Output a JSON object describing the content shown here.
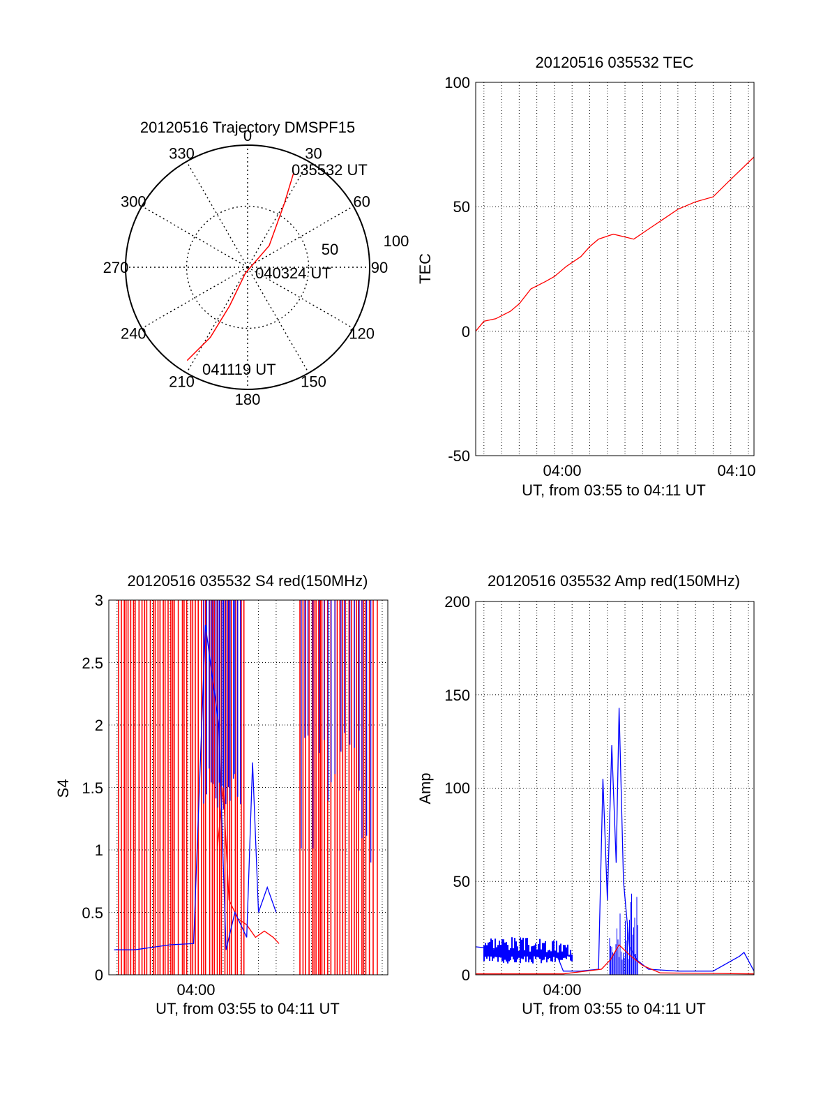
{
  "chart_data": [
    {
      "type": "polar",
      "title": "20120516 Trajectory DMSPF15",
      "azimuth_labels": [
        "0",
        "30",
        "60",
        "90",
        "120",
        "150",
        "180",
        "210",
        "240",
        "270",
        "300",
        "330"
      ],
      "radial_labels": [
        "50",
        "100"
      ],
      "grid": true,
      "annotations": [
        "035532 UT",
        "040324 UT",
        "041119 UT"
      ],
      "series": [
        {
          "color": "#ff0000",
          "points": [
            {
              "az": 26,
              "zen": 86
            },
            {
              "az": 30,
              "zen": 60
            },
            {
              "az": 45,
              "zen": 25
            },
            {
              "az": 200,
              "zen": 5
            },
            {
              "az": 205,
              "zen": 35
            },
            {
              "az": 208,
              "zen": 65
            },
            {
              "az": 213,
              "zen": 91
            }
          ]
        }
      ],
      "zenith_range": [
        0,
        100
      ]
    },
    {
      "type": "line",
      "title": "20120516 035532 TEC",
      "xlabel": "UT, from 03:55 to 04:11 UT",
      "ylabel": "TEC",
      "ylim": [
        -50,
        100
      ],
      "xlim": [
        "03:55:32",
        "04:11:19"
      ],
      "yticks": [
        "-50",
        "0",
        "50",
        "100"
      ],
      "xticks": [
        "04:00",
        "04:10"
      ],
      "grid": true,
      "series": [
        {
          "color": "#ff0000",
          "x": [
            "03:55:32",
            "03:56:00",
            "03:56:40",
            "03:57:30",
            "03:58:00",
            "03:58:40",
            "03:59:30",
            "04:00:00",
            "04:00:40",
            "04:01:30",
            "04:02:00",
            "04:02:30",
            "04:03:20",
            "04:04:30",
            "04:05:20",
            "04:06:10",
            "04:07:00",
            "04:08:00",
            "04:09:00",
            "04:10:00",
            "04:11:19"
          ],
          "values": [
            0,
            4,
            5,
            8,
            11,
            17,
            20,
            22,
            26,
            30,
            34,
            37,
            39,
            37,
            41,
            45,
            49,
            52,
            54,
            61,
            70
          ]
        }
      ]
    },
    {
      "type": "line",
      "title": "20120516 035532 S4 red(150MHz)",
      "xlabel": "UT, from 03:55 to 04:11 UT",
      "ylabel": "S4",
      "ylim": [
        0,
        3
      ],
      "xlim": [
        "03:55:32",
        "04:11:19"
      ],
      "yticks": [
        "0",
        "0.5",
        "1",
        "1.5",
        "2",
        "2.5",
        "3"
      ],
      "xticks": [
        "04:00"
      ],
      "grid": true,
      "series": [
        {
          "color": "#ff0000",
          "x": [
            "04:01:40",
            "04:02:00",
            "04:02:20",
            "04:02:50",
            "04:03:20",
            "04:03:50",
            "04:04:20",
            "04:04:50",
            "04:05:10"
          ],
          "values": [
            1.0,
            1.5,
            0.6,
            0.45,
            0.4,
            0.3,
            0.35,
            0.3,
            0.25
          ]
        },
        {
          "color": "#0000ff",
          "x": [
            "03:55:50",
            "03:57:00",
            "03:58:00",
            "03:59:00",
            "04:00:20",
            "04:01:00",
            "04:01:45",
            "04:02:10",
            "04:02:40",
            "04:03:20",
            "04:03:40",
            "04:04:00",
            "04:04:30",
            "04:05:00"
          ],
          "values": [
            0.2,
            0.2,
            0.22,
            0.24,
            0.25,
            2.8,
            2.0,
            0.2,
            0.5,
            0.3,
            1.7,
            0.5,
            0.7,
            0.5
          ]
        }
      ]
    },
    {
      "type": "line",
      "title": "20120516 035532 Amp red(150MHz)",
      "xlabel": "UT, from 03:55 to 04:11 UT",
      "ylabel": "Amp",
      "ylim": [
        0,
        200
      ],
      "xlim": [
        "03:55:32",
        "04:11:19"
      ],
      "yticks": [
        "0",
        "50",
        "100",
        "150",
        "200"
      ],
      "xticks": [
        "04:00"
      ],
      "grid": true,
      "series": [
        {
          "color": "#0000ff",
          "x": [
            "03:55:32",
            "03:56:30",
            "03:57:30",
            "03:58:30",
            "03:59:30",
            "04:00:10",
            "04:00:30",
            "04:01:30",
            "04:02:30",
            "04:02:45",
            "04:03:00",
            "04:03:15",
            "04:03:30",
            "04:03:40",
            "04:03:55",
            "04:04:15",
            "04:04:40",
            "04:05:20",
            "04:07:00",
            "04:09:00",
            "04:10:30",
            "04:10:45",
            "04:11:19"
          ],
          "values": [
            15,
            14,
            13,
            12,
            11,
            10,
            2,
            2,
            3,
            105,
            40,
            123,
            60,
            143,
            50,
            15,
            8,
            3,
            2,
            2,
            10,
            12,
            2
          ]
        },
        {
          "color": "#ff0000",
          "x": [
            "03:55:32",
            "04:00:30",
            "04:02:40",
            "04:03:10",
            "04:03:40",
            "04:04:20",
            "04:05:00",
            "04:06:00",
            "04:11:19"
          ],
          "values": [
            0.5,
            0.5,
            3,
            8,
            16,
            10,
            5,
            1,
            0.5
          ]
        }
      ]
    }
  ]
}
